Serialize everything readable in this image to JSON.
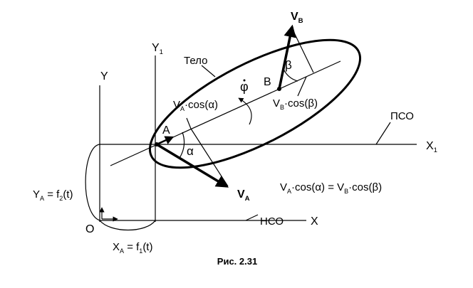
{
  "labels": {
    "y": {
      "segments": [
        "Y"
      ]
    },
    "y1": {
      "segments": [
        "Y",
        "1"
      ]
    },
    "x": {
      "segments": [
        "X"
      ]
    },
    "x1": {
      "segments": [
        "X",
        "1"
      ]
    },
    "origin": {
      "segments": [
        "O"
      ]
    },
    "body": {
      "segments": [
        "Тело"
      ]
    },
    "phi": {
      "segments": [
        "φ"
      ]
    },
    "point_b": {
      "segments": [
        "B"
      ]
    },
    "beta": {
      "segments": [
        "β"
      ]
    },
    "vb": {
      "segments": [
        "V",
        "B"
      ]
    },
    "point_a": {
      "segments": [
        "A"
      ]
    },
    "alpha": {
      "segments": [
        "α"
      ]
    },
    "va_cos": {
      "segments": [
        "V",
        "A",
        "·cos(α)"
      ]
    },
    "vb_cos": {
      "segments": [
        "V",
        "B",
        "·cos(β)"
      ]
    },
    "pso": {
      "segments": [
        "ПСО"
      ]
    },
    "nso": {
      "segments": [
        "НСО"
      ]
    },
    "va": {
      "segments": [
        "V",
        "A"
      ]
    },
    "equation": {
      "segments": [
        "V",
        "A",
        "·cos(α) = V",
        "B",
        "·cos(β)"
      ]
    },
    "ya": {
      "segments": [
        "Y",
        "A",
        " = f",
        "2",
        "(t)"
      ]
    },
    "xa": {
      "segments": [
        "X",
        "A",
        " = f",
        "1",
        "(t)"
      ]
    }
  },
  "caption": "Рис. 2.31"
}
